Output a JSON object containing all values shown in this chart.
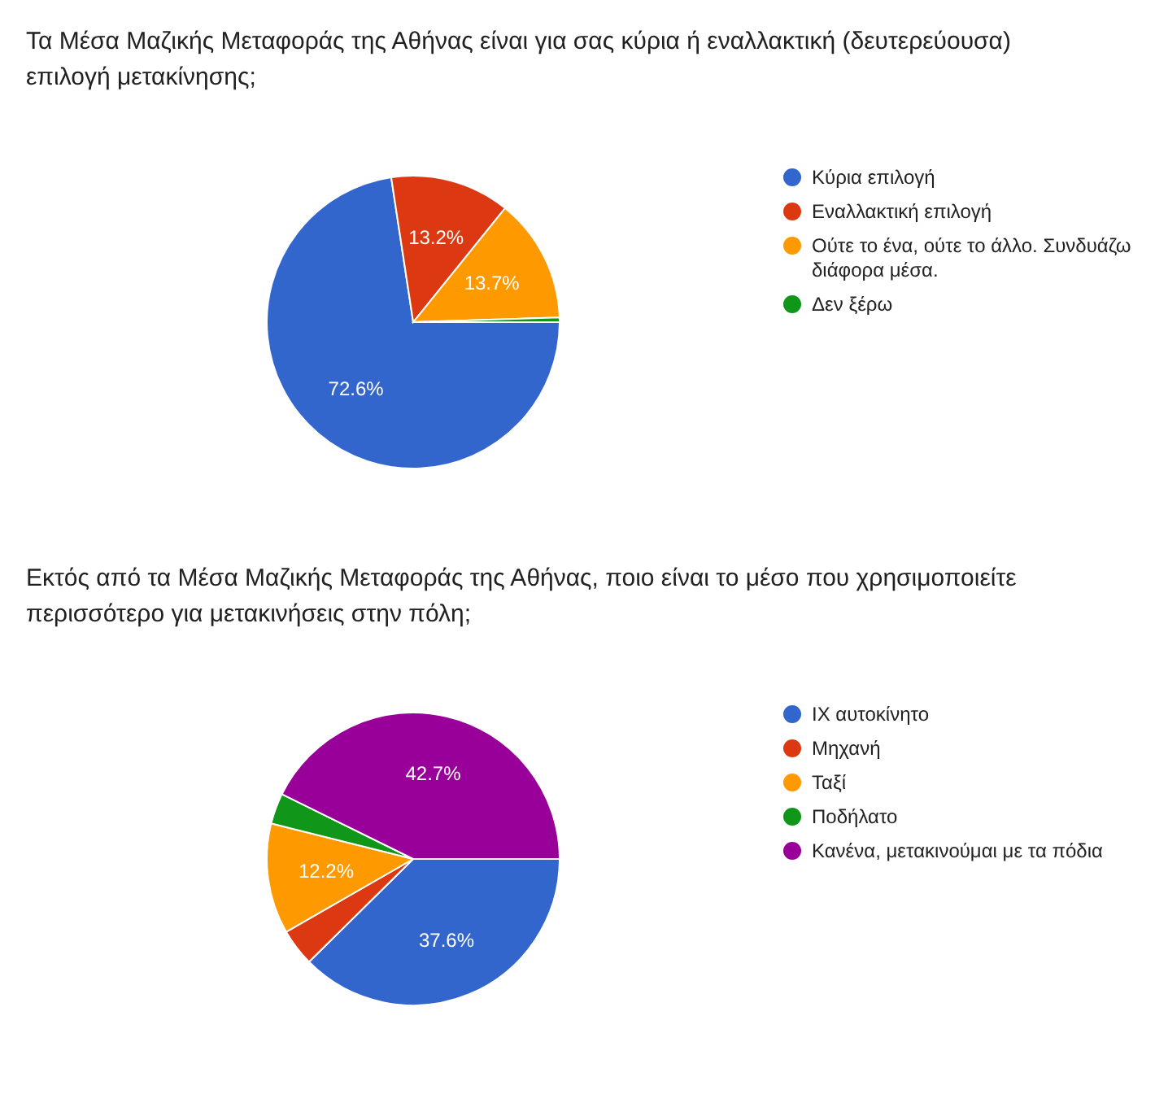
{
  "chart_data": [
    {
      "type": "pie",
      "title": "Τα Μέσα Μαζικής Μεταφοράς της Αθήνας είναι για σας κύρια ή εναλλακτική (δευτερεύουσα) επιλογή μετακίνησης;",
      "categories": [
        "Κύρια επιλογή",
        "Εναλλακτική επιλογή",
        "Ούτε το ένα, ούτε το άλλο. Συνδυάζω διάφορα μέσα.",
        "Δεν ξέρω"
      ],
      "values": [
        72.6,
        13.2,
        13.7,
        0.5
      ],
      "colors": [
        "#3366cc",
        "#dc3912",
        "#ff9900",
        "#109618"
      ],
      "value_labels": [
        "72.6%",
        "13.2%",
        "13.7%",
        null
      ],
      "legend": "right"
    },
    {
      "type": "pie",
      "title": "Εκτός από τα Μέσα Μαζικής Μεταφοράς της Αθήνας, ποιο είναι το μέσο που χρησιμοποιείτε περισσότερο για μετακινήσεις στην πόλη;",
      "categories": [
        "ΙΧ αυτοκίνητο",
        "Μηχανή",
        "Ταξί",
        "Ποδήλατο",
        "Κανένα, μετακινούμαι με τα πόδια"
      ],
      "values": [
        37.6,
        4.1,
        12.2,
        3.4,
        42.7
      ],
      "colors": [
        "#3366cc",
        "#dc3912",
        "#ff9900",
        "#109618",
        "#990099"
      ],
      "value_labels": [
        "37.6%",
        null,
        "12.2%",
        null,
        "42.7%"
      ],
      "legend": "right"
    }
  ]
}
